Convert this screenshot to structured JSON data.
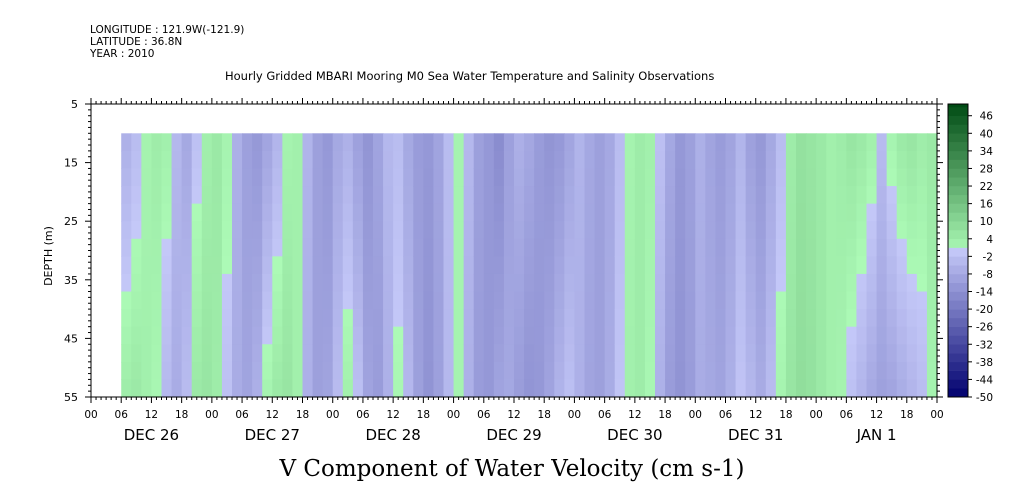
{
  "header": {
    "longitude": "LONGITUDE : 121.9W(-121.9)",
    "latitude": "LATITUDE : 36.8N",
    "year": "YEAR : 2010"
  },
  "chart_data": {
    "type": "heatmap",
    "title": "Hourly Gridded MBARI Mooring M0 Sea Water Temperature and Salinity Observations",
    "xlabel": "V Component of Water Velocity (cm s-1)",
    "ylabel": "DEPTH (m)",
    "y_ticks": [
      "5",
      "15",
      "25",
      "35",
      "45",
      "55"
    ],
    "y_tick_values": [
      5,
      15,
      25,
      35,
      45,
      55
    ],
    "ylim": [
      5,
      55
    ],
    "y_data_range": [
      10,
      55
    ],
    "x_hour_labels": [
      "00",
      "06",
      "12",
      "18",
      "00",
      "06",
      "12",
      "18",
      "00",
      "06",
      "12",
      "18",
      "00",
      "06",
      "12",
      "18",
      "00",
      "06",
      "12",
      "18",
      "00",
      "06",
      "12",
      "18",
      "00",
      "06",
      "12",
      "18",
      "00"
    ],
    "x_day_labels": [
      "DEC 26",
      "DEC 27",
      "DEC 28",
      "DEC 29",
      "DEC 30",
      "DEC 31",
      "JAN  1"
    ],
    "x_range_hours": [
      0,
      168
    ],
    "data_start_hour": 6,
    "colorbar_levels": [
      "46",
      "40",
      "34",
      "28",
      "22",
      "16",
      "10",
      "4",
      "-2",
      "-8",
      "-14",
      "-20",
      "-26",
      "-32",
      "-38",
      "-44",
      "-50"
    ],
    "colorbar_range": [
      -50,
      50
    ],
    "colorbar_step": 3,
    "band_hours": [
      6,
      8,
      10,
      12,
      14,
      16,
      18,
      20,
      22,
      24,
      26,
      28,
      30,
      32,
      34,
      36,
      38,
      40,
      42,
      44,
      46,
      48,
      50,
      52,
      54,
      56,
      58,
      60,
      62,
      64,
      66,
      68,
      70,
      72,
      74,
      76,
      78,
      80,
      82,
      84,
      86,
      88,
      90,
      92,
      94,
      96,
      98,
      100,
      102,
      104,
      106,
      108,
      110,
      112,
      114,
      116,
      118,
      120,
      122,
      124,
      126,
      128,
      130,
      132,
      134,
      136,
      138,
      140,
      142,
      144,
      146,
      148,
      150,
      152,
      154,
      156,
      158,
      160,
      162,
      164,
      166
    ],
    "band_v_upper": [
      -6,
      -3,
      2,
      4,
      3,
      -4,
      -8,
      -2,
      3,
      5,
      2,
      -6,
      -10,
      -12,
      -9,
      -5,
      2,
      3,
      -5,
      -10,
      -12,
      -8,
      -6,
      -10,
      -13,
      -9,
      -4,
      -3,
      -8,
      -11,
      -12,
      -9,
      -3,
      2,
      -4,
      -10,
      -12,
      -15,
      -10,
      -6,
      -8,
      -11,
      -13,
      -12,
      -9,
      -5,
      -8,
      -10,
      -8,
      -3,
      2,
      4,
      3,
      -2,
      -8,
      -12,
      -10,
      -6,
      -9,
      -11,
      -9,
      -5,
      -10,
      -12,
      -8,
      -3,
      4,
      7,
      6,
      5,
      3,
      4,
      6,
      5,
      3,
      -3,
      2,
      5,
      6,
      4,
      5
    ],
    "band_v_lower": [
      4,
      5,
      3,
      1,
      -4,
      -7,
      -3,
      5,
      6,
      4,
      -2,
      -7,
      -9,
      -6,
      2,
      5,
      6,
      3,
      -6,
      -10,
      -9,
      -3,
      3,
      -2,
      -9,
      -11,
      -6,
      1,
      -4,
      -10,
      -13,
      -10,
      -4,
      2,
      -6,
      -11,
      -12,
      -9,
      -8,
      -11,
      -13,
      -12,
      -9,
      -5,
      -2,
      -6,
      -9,
      -10,
      -7,
      -1,
      3,
      4,
      1,
      -6,
      -11,
      -13,
      -11,
      -7,
      -8,
      -9,
      -6,
      -1,
      -4,
      -7,
      -3,
      2,
      6,
      8,
      7,
      5,
      3,
      2,
      -2,
      -5,
      -8,
      -10,
      -9,
      -7,
      -5,
      -3,
      2
    ]
  }
}
